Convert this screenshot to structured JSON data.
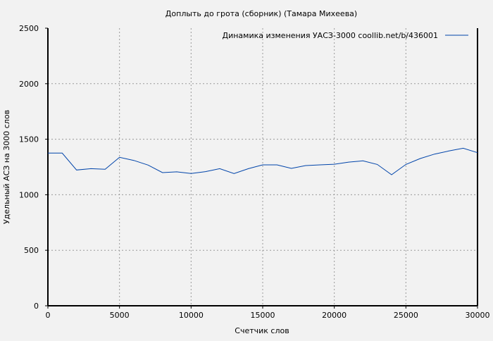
{
  "chart_data": {
    "type": "line",
    "title": "Доплыть до грота (сборник) (Тамара Михеева)",
    "xlabel": "Счетчик слов",
    "ylabel": "Удельный АСЗ на 3000 слов",
    "xlim": [
      0,
      30000
    ],
    "ylim": [
      0,
      2500
    ],
    "xticks": [
      0,
      5000,
      10000,
      15000,
      20000,
      25000,
      30000
    ],
    "yticks": [
      0,
      500,
      1000,
      1500,
      2000,
      2500
    ],
    "grid": true,
    "legend_position": "top-right",
    "line_color": "#0044aa",
    "series": [
      {
        "name": "Динамика изменения УАСЗ-3000  coollib.net/b/436001",
        "x": [
          0,
          1000,
          2000,
          3000,
          4000,
          5000,
          6000,
          7000,
          8000,
          9000,
          10000,
          11000,
          12000,
          13000,
          14000,
          15000,
          16000,
          17000,
          18000,
          19000,
          20000,
          21000,
          22000,
          23000,
          24000,
          25000,
          26000,
          27000,
          28000,
          29000,
          30000
        ],
        "values": [
          1375,
          1375,
          1223,
          1235,
          1229,
          1337,
          1309,
          1267,
          1199,
          1206,
          1191,
          1208,
          1235,
          1191,
          1235,
          1269,
          1269,
          1237,
          1263,
          1269,
          1275,
          1294,
          1305,
          1273,
          1180,
          1273,
          1326,
          1366,
          1394,
          1419,
          1379
        ]
      }
    ]
  }
}
